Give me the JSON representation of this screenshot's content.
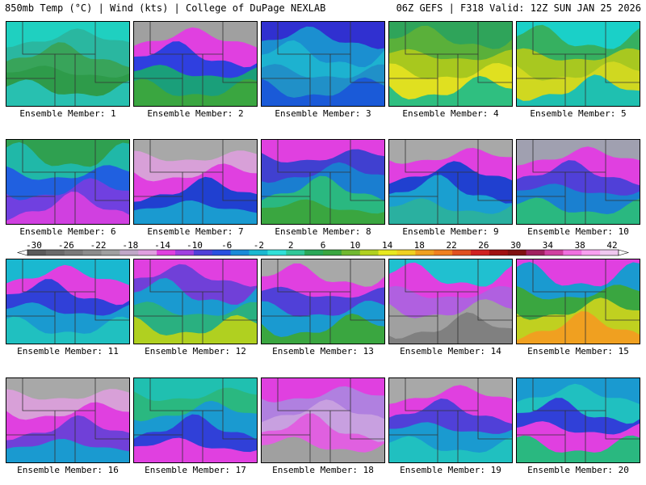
{
  "header": {
    "left": "850mb Temp (°C) | Wind (kts) | College of DuPage NEXLAB",
    "right": "06Z GEFS | F318 Valid: 12Z SUN JAN 25 2026"
  },
  "panels": [
    {
      "label": "Ensemble Member: 1",
      "colors": [
        "#1fd0c0",
        "#2ab7a0",
        "#38a45a",
        "#2e9b4a",
        "#28c0b0"
      ]
    },
    {
      "label": "Ensemble Member: 2",
      "colors": [
        "#a0a0a0",
        "#e040e0",
        "#2f3fe0",
        "#1a9f7a",
        "#3aa640"
      ]
    },
    {
      "label": "Ensemble Member: 3",
      "colors": [
        "#3030d0",
        "#1b8fd0",
        "#1db2d0",
        "#2090c8",
        "#1a5ad8"
      ]
    },
    {
      "label": "Ensemble Member: 4",
      "colors": [
        "#2fa45a",
        "#5ab03a",
        "#a8c81e",
        "#e0e020",
        "#2fbf80"
      ]
    },
    {
      "label": "Ensemble Member: 5",
      "colors": [
        "#1ad0c8",
        "#36b060",
        "#a8c820",
        "#d0d820",
        "#1fc0b0"
      ]
    },
    {
      "label": "Ensemble Member: 6",
      "colors": [
        "#2fa050",
        "#20b8a8",
        "#2060e0",
        "#7040e0",
        "#d040e0"
      ]
    },
    {
      "label": "Ensemble Member: 7",
      "colors": [
        "#a8a8a8",
        "#d8a0d8",
        "#e040e0",
        "#2040d0",
        "#1a9ad0"
      ]
    },
    {
      "label": "Ensemble Member: 8",
      "colors": [
        "#e040e0",
        "#4040d0",
        "#1a7ed0",
        "#2ab880",
        "#3aa640"
      ]
    },
    {
      "label": "Ensemble Member: 9",
      "colors": [
        "#a8a8a8",
        "#e040e0",
        "#2040d0",
        "#1a9fd0",
        "#2ab0a0"
      ]
    },
    {
      "label": "Ensemble Member: 10",
      "colors": [
        "#a0a0b0",
        "#e040e0",
        "#5040d8",
        "#1a80d0",
        "#2ab880"
      ]
    },
    {
      "label": "Ensemble Member: 11",
      "colors": [
        "#1ab8d0",
        "#e040e0",
        "#3040d8",
        "#1a9ad0",
        "#20c0c0"
      ]
    },
    {
      "label": "Ensemble Member: 12",
      "colors": [
        "#e040e0",
        "#7040d8",
        "#1a9ad0",
        "#2ab080",
        "#b0d020"
      ]
    },
    {
      "label": "Ensemble Member: 13",
      "colors": [
        "#a8a8a8",
        "#e040e0",
        "#5040d8",
        "#1a9ad0",
        "#3aa640"
      ]
    },
    {
      "label": "Ensemble Member: 14",
      "colors": [
        "#20c0d0",
        "#e040e0",
        "#b060e0",
        "#a0a0a0",
        "#808080"
      ]
    },
    {
      "label": "Ensemble Member: 15",
      "colors": [
        "#e040e0",
        "#1a9ad0",
        "#3aa640",
        "#c0d020",
        "#f0a020"
      ]
    },
    {
      "label": "Ensemble Member: 16",
      "colors": [
        "#a8a8a8",
        "#d8a0d8",
        "#e040e0",
        "#7040d8",
        "#1a9ad0"
      ]
    },
    {
      "label": "Ensemble Member: 17",
      "colors": [
        "#20c0b0",
        "#2ab880",
        "#1a9ad0",
        "#3040d8",
        "#e040e0"
      ]
    },
    {
      "label": "Ensemble Member: 18",
      "colors": [
        "#e040e0",
        "#b080e0",
        "#c8a0e0",
        "#e060e0",
        "#a0a0a0"
      ]
    },
    {
      "label": "Ensemble Member: 19",
      "colors": [
        "#a8a8a8",
        "#e040e0",
        "#5040d8",
        "#1a9ad0",
        "#20c0c0"
      ]
    },
    {
      "label": "Ensemble Member: 20",
      "colors": [
        "#1a9ad0",
        "#20c0c0",
        "#3040d8",
        "#e040e0",
        "#2ab880"
      ]
    }
  ],
  "colorbar": {
    "ticks": [
      "-30",
      "-26",
      "-22",
      "-18",
      "-14",
      "-10",
      "-6",
      "-2",
      "2",
      "6",
      "10",
      "14",
      "18",
      "22",
      "26",
      "30",
      "34",
      "38",
      "42"
    ],
    "colors": [
      "#5a5a5a",
      "#6a6a6a",
      "#7a7a7a",
      "#8c8c8c",
      "#a0a0a0",
      "#c0a8c8",
      "#e0a0e0",
      "#e040e0",
      "#a040e0",
      "#5040d8",
      "#2a50e0",
      "#1a8ad8",
      "#1ab8d0",
      "#30e0d8",
      "#30c898",
      "#2aa858",
      "#3aa640",
      "#70b830",
      "#b0d020",
      "#e8e820",
      "#f0d020",
      "#f0a020",
      "#f08020",
      "#e05020",
      "#d02020",
      "#a01010",
      "#801010",
      "#a02060",
      "#d040a0",
      "#f070e0",
      "#f8a0f0",
      "#f0c8f0"
    ]
  }
}
